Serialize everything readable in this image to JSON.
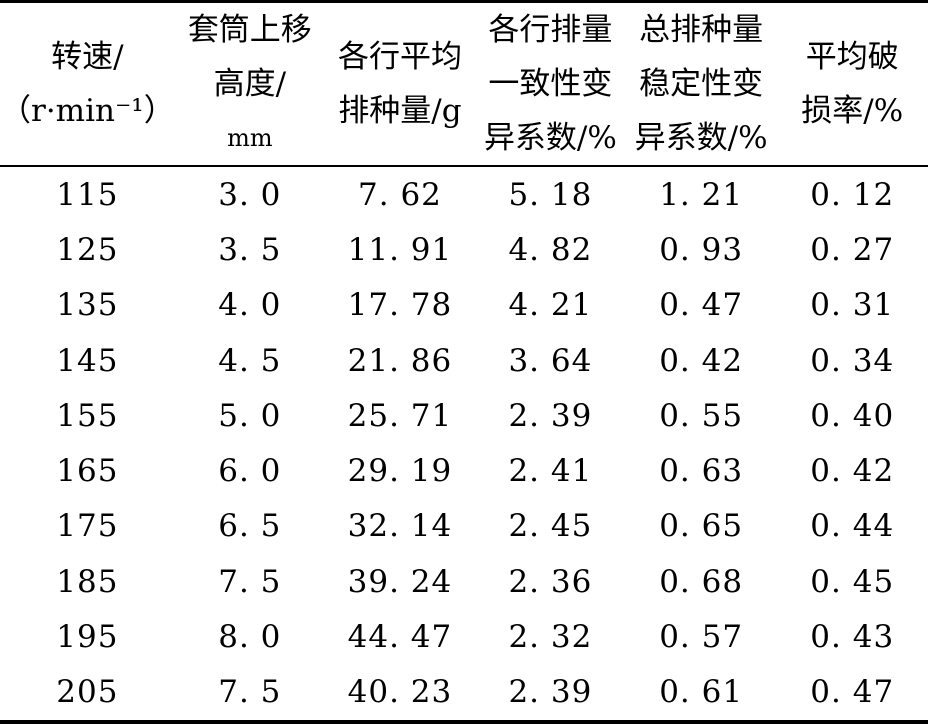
{
  "table": {
    "headers": [
      [
        "转速/",
        "（r·min⁻¹）"
      ],
      [
        "套筒上移",
        "高度/",
        "mm"
      ],
      [
        "各行平均",
        "排种量/g"
      ],
      [
        "各行排量",
        "一致性变",
        "异系数/%"
      ],
      [
        "总排种量",
        "稳定性变",
        "异系数/%"
      ],
      [
        "平均破",
        "损率/%"
      ]
    ],
    "rows": [
      [
        "115",
        "3. 0",
        "7. 62",
        "5. 18",
        "1. 21",
        "0. 12"
      ],
      [
        "125",
        "3. 5",
        "11. 91",
        "4. 82",
        "0. 93",
        "0. 27"
      ],
      [
        "135",
        "4. 0",
        "17. 78",
        "4. 21",
        "0. 47",
        "0. 31"
      ],
      [
        "145",
        "4. 5",
        "21. 86",
        "3. 64",
        "0. 42",
        "0. 34"
      ],
      [
        "155",
        "5. 0",
        "25. 71",
        "2. 39",
        "0. 55",
        "0. 40"
      ],
      [
        "165",
        "6. 0",
        "29. 19",
        "2. 41",
        "0. 63",
        "0. 42"
      ],
      [
        "175",
        "6. 5",
        "32. 14",
        "2. 45",
        "0. 65",
        "0. 44"
      ],
      [
        "185",
        "7. 5",
        "39. 24",
        "2. 36",
        "0. 68",
        "0. 45"
      ],
      [
        "195",
        "8. 0",
        "44. 47",
        "2. 32",
        "0. 57",
        "0. 43"
      ],
      [
        "205",
        "7. 5",
        "40. 23",
        "2. 39",
        "0. 61",
        "0. 47"
      ]
    ]
  }
}
